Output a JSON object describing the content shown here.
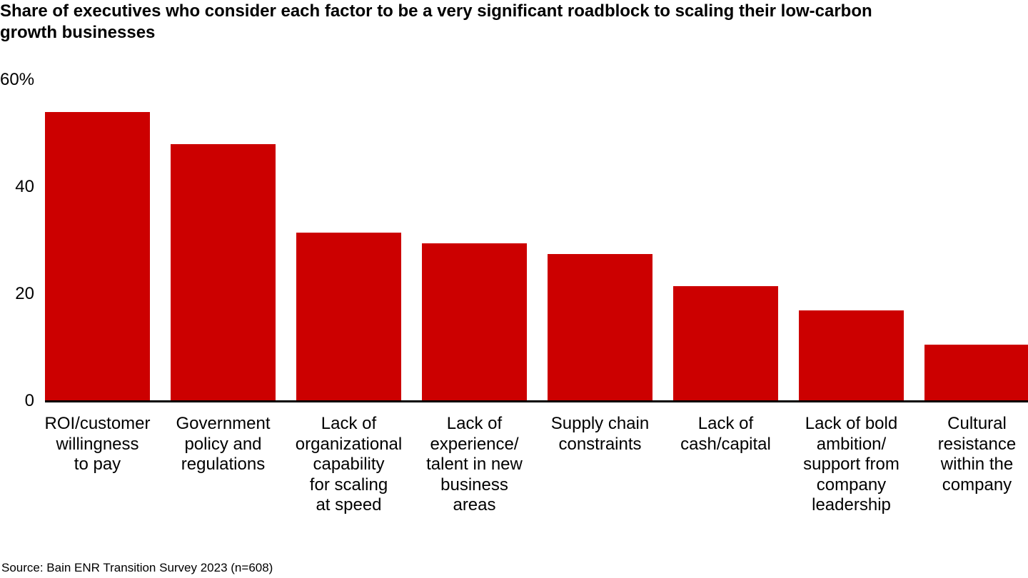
{
  "title": "Share of executives who consider each factor to be a very significant roadblock to scaling their low-carbon growth businesses",
  "source": "Source: Bain ENR Transition Survey 2023 (n=608)",
  "colors": {
    "bar": "#cc0000",
    "axis": "#000000",
    "text": "#000000"
  },
  "chart_data": {
    "type": "bar",
    "title": "Share of executives who consider each factor to be a very significant roadblock to scaling their low-carbon growth businesses",
    "categories": [
      "ROI/customer willingness to pay",
      "Government policy and regulations",
      "Lack of organizational capability for scaling at speed",
      "Lack of experience/talent in new business areas",
      "Supply chain constraints",
      "Lack of cash/capital",
      "Lack of bold ambition/support from company leadership",
      "Cultural resistance within the company"
    ],
    "category_lines": [
      [
        "ROI/customer",
        "willingness",
        "to pay"
      ],
      [
        "Government",
        "policy and",
        "regulations"
      ],
      [
        "Lack of",
        "organizational",
        "capability",
        "for scaling",
        "at speed"
      ],
      [
        "Lack of",
        "experience/",
        "talent in new",
        "business",
        "areas"
      ],
      [
        "Supply chain",
        "constraints"
      ],
      [
        "Lack of",
        "cash/capital"
      ],
      [
        "Lack of bold",
        "ambition/",
        "support from",
        "company",
        "leadership"
      ],
      [
        "Cultural",
        "resistance",
        "within the",
        "company"
      ]
    ],
    "values": [
      54,
      48,
      31.5,
      29.5,
      27.5,
      21.5,
      17,
      10.5
    ],
    "unit": "%",
    "xlabel": "",
    "ylabel": "",
    "ylim": [
      0,
      60
    ],
    "yticks": [
      {
        "value": 60,
        "label": "60%"
      },
      {
        "value": 40,
        "label": "40"
      },
      {
        "value": 20,
        "label": "20"
      },
      {
        "value": 0,
        "label": "0"
      }
    ],
    "grid": false,
    "legend": false,
    "bar_color": "#cc0000",
    "source": "Source: Bain ENR Transition Survey 2023 (n=608)"
  }
}
